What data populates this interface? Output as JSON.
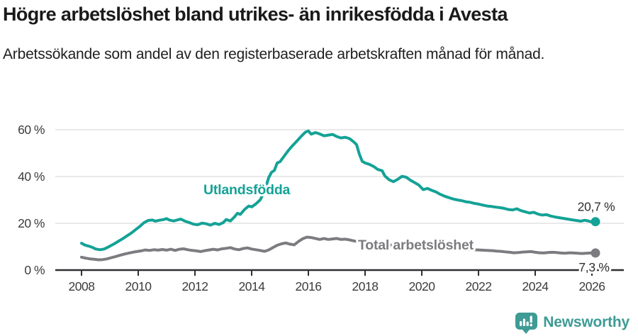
{
  "header": {
    "title": "Högre arbetslöshet bland utrikes- än inrikesfödda i Avesta",
    "subtitle": "Arbetssökande som andel av den registerbaserade arbetskraften månad för månad."
  },
  "footer": {
    "brand": "Newsworthy"
  },
  "chart_data": {
    "type": "line",
    "title": "Högre arbetslöshet bland utrikes- än inrikesfödda i Avesta",
    "subtitle": "Arbetssökande som andel av den registerbaserade arbetskraften månad för månad.",
    "xlabel": "",
    "ylabel": "",
    "xlim": [
      2007.08,
      2027.13
    ],
    "ylim": [
      0,
      70
    ],
    "grid": "horizontal",
    "legend": "direct-labels",
    "colors": {
      "teal": "#14A296",
      "gray": "#7C7C80",
      "grid": "#E2E2E2",
      "axis": "#2F2F33"
    },
    "x_ticks": [
      {
        "value": 2008,
        "label": "2008"
      },
      {
        "value": 2010,
        "label": "2010"
      },
      {
        "value": 2012,
        "label": "2012"
      },
      {
        "value": 2014,
        "label": "2014"
      },
      {
        "value": 2016,
        "label": "2016"
      },
      {
        "value": 2018,
        "label": "2018"
      },
      {
        "value": 2020,
        "label": "2020"
      },
      {
        "value": 2022,
        "label": "2022"
      },
      {
        "value": 2024,
        "label": "2024"
      },
      {
        "value": 2026,
        "label": "2026"
      }
    ],
    "y_ticks": [
      {
        "value": 0,
        "label": "0 %"
      },
      {
        "value": 20,
        "label": "20 %"
      },
      {
        "value": 40,
        "label": "40 %"
      },
      {
        "value": 60,
        "label": "60 %"
      }
    ],
    "series": [
      {
        "id": "utlandsfodda",
        "name": "Utlandsfödda",
        "color": "#14A296",
        "label": {
          "x": 2012.3,
          "y": 32.4
        },
        "end_label": {
          "text": "20,7 %",
          "dx": 1,
          "dy": -15
        },
        "end_value": 20.7,
        "points": [
          [
            2008.0,
            11.5
          ],
          [
            2008.1,
            10.8
          ],
          [
            2008.2,
            10.4
          ],
          [
            2008.3,
            10.1
          ],
          [
            2008.4,
            9.6
          ],
          [
            2008.5,
            9.0
          ],
          [
            2008.65,
            8.7
          ],
          [
            2008.8,
            9.0
          ],
          [
            2008.9,
            9.6
          ],
          [
            2009.0,
            10.2
          ],
          [
            2009.15,
            11.2
          ],
          [
            2009.3,
            12.3
          ],
          [
            2009.45,
            13.4
          ],
          [
            2009.6,
            14.6
          ],
          [
            2009.75,
            15.8
          ],
          [
            2009.9,
            17.2
          ],
          [
            2010.05,
            18.6
          ],
          [
            2010.2,
            20.2
          ],
          [
            2010.35,
            21.2
          ],
          [
            2010.5,
            21.4
          ],
          [
            2010.6,
            20.9
          ],
          [
            2010.75,
            21.3
          ],
          [
            2010.9,
            21.6
          ],
          [
            2011.0,
            22.0
          ],
          [
            2011.1,
            21.4
          ],
          [
            2011.25,
            21.0
          ],
          [
            2011.4,
            21.5
          ],
          [
            2011.5,
            21.8
          ],
          [
            2011.65,
            20.9
          ],
          [
            2011.8,
            20.3
          ],
          [
            2011.95,
            19.6
          ],
          [
            2012.1,
            19.4
          ],
          [
            2012.25,
            20.1
          ],
          [
            2012.4,
            19.8
          ],
          [
            2012.55,
            19.2
          ],
          [
            2012.7,
            20.0
          ],
          [
            2012.85,
            19.5
          ],
          [
            2013.0,
            20.3
          ],
          [
            2013.1,
            21.6
          ],
          [
            2013.25,
            21.0
          ],
          [
            2013.4,
            22.8
          ],
          [
            2013.5,
            24.3
          ],
          [
            2013.6,
            23.8
          ],
          [
            2013.75,
            25.9
          ],
          [
            2013.9,
            27.4
          ],
          [
            2014.0,
            27.0
          ],
          [
            2014.15,
            28.3
          ],
          [
            2014.3,
            30.0
          ],
          [
            2014.45,
            33.5
          ],
          [
            2014.6,
            39.5
          ],
          [
            2014.7,
            41.8
          ],
          [
            2014.8,
            42.6
          ],
          [
            2014.9,
            45.8
          ],
          [
            2015.0,
            46.3
          ],
          [
            2015.15,
            48.8
          ],
          [
            2015.3,
            51.2
          ],
          [
            2015.45,
            53.3
          ],
          [
            2015.6,
            55.2
          ],
          [
            2015.75,
            57.2
          ],
          [
            2015.9,
            59.0
          ],
          [
            2016.0,
            59.5
          ],
          [
            2016.1,
            58.1
          ],
          [
            2016.25,
            58.8
          ],
          [
            2016.4,
            58.2
          ],
          [
            2016.55,
            57.4
          ],
          [
            2016.7,
            57.7
          ],
          [
            2016.85,
            58.0
          ],
          [
            2017.0,
            57.1
          ],
          [
            2017.15,
            56.5
          ],
          [
            2017.3,
            56.8
          ],
          [
            2017.45,
            56.2
          ],
          [
            2017.6,
            54.8
          ],
          [
            2017.7,
            53.6
          ],
          [
            2017.8,
            49.5
          ],
          [
            2017.9,
            46.5
          ],
          [
            2018.0,
            45.8
          ],
          [
            2018.15,
            45.2
          ],
          [
            2018.3,
            44.3
          ],
          [
            2018.45,
            43.0
          ],
          [
            2018.6,
            42.5
          ],
          [
            2018.7,
            40.2
          ],
          [
            2018.85,
            38.6
          ],
          [
            2019.0,
            37.8
          ],
          [
            2019.15,
            38.8
          ],
          [
            2019.3,
            40.1
          ],
          [
            2019.45,
            39.7
          ],
          [
            2019.6,
            38.4
          ],
          [
            2019.75,
            37.4
          ],
          [
            2019.9,
            36.3
          ],
          [
            2020.05,
            34.4
          ],
          [
            2020.2,
            34.9
          ],
          [
            2020.35,
            34.1
          ],
          [
            2020.5,
            33.4
          ],
          [
            2020.65,
            32.4
          ],
          [
            2020.8,
            31.6
          ],
          [
            2020.95,
            31.0
          ],
          [
            2021.1,
            30.4
          ],
          [
            2021.25,
            30.0
          ],
          [
            2021.4,
            29.7
          ],
          [
            2021.55,
            29.2
          ],
          [
            2021.7,
            29.0
          ],
          [
            2021.85,
            28.5
          ],
          [
            2022.0,
            28.2
          ],
          [
            2022.15,
            27.8
          ],
          [
            2022.3,
            27.4
          ],
          [
            2022.45,
            27.2
          ],
          [
            2022.6,
            26.9
          ],
          [
            2022.75,
            26.7
          ],
          [
            2022.9,
            26.4
          ],
          [
            2023.05,
            25.9
          ],
          [
            2023.2,
            25.7
          ],
          [
            2023.35,
            26.2
          ],
          [
            2023.5,
            25.4
          ],
          [
            2023.65,
            24.9
          ],
          [
            2023.8,
            24.4
          ],
          [
            2023.95,
            24.7
          ],
          [
            2024.1,
            23.9
          ],
          [
            2024.25,
            23.5
          ],
          [
            2024.4,
            23.7
          ],
          [
            2024.55,
            23.1
          ],
          [
            2024.7,
            22.7
          ],
          [
            2024.85,
            22.4
          ],
          [
            2025.0,
            22.1
          ],
          [
            2025.15,
            21.8
          ],
          [
            2025.3,
            21.5
          ],
          [
            2025.45,
            21.2
          ],
          [
            2025.6,
            20.9
          ],
          [
            2025.75,
            21.3
          ],
          [
            2025.9,
            20.9
          ],
          [
            2026.0,
            20.5
          ],
          [
            2026.125,
            20.7
          ]
        ]
      },
      {
        "id": "total",
        "name": "Total arbetslöshet",
        "color": "#7C7C80",
        "label": {
          "x": 2017.75,
          "y": 8.8
        },
        "end_label": {
          "text": "7,3 %",
          "dx": -2,
          "dy": 26
        },
        "end_value": 7.3,
        "points": [
          [
            2008.0,
            5.5
          ],
          [
            2008.15,
            5.1
          ],
          [
            2008.3,
            4.8
          ],
          [
            2008.45,
            4.6
          ],
          [
            2008.6,
            4.4
          ],
          [
            2008.75,
            4.5
          ],
          [
            2008.9,
            4.8
          ],
          [
            2009.05,
            5.3
          ],
          [
            2009.2,
            5.8
          ],
          [
            2009.35,
            6.3
          ],
          [
            2009.5,
            6.8
          ],
          [
            2009.65,
            7.2
          ],
          [
            2009.8,
            7.6
          ],
          [
            2009.95,
            7.9
          ],
          [
            2010.1,
            8.2
          ],
          [
            2010.25,
            8.6
          ],
          [
            2010.4,
            8.4
          ],
          [
            2010.55,
            8.7
          ],
          [
            2010.7,
            8.5
          ],
          [
            2010.85,
            8.8
          ],
          [
            2011.0,
            8.5
          ],
          [
            2011.15,
            8.9
          ],
          [
            2011.3,
            8.4
          ],
          [
            2011.45,
            8.9
          ],
          [
            2011.6,
            9.1
          ],
          [
            2011.75,
            8.7
          ],
          [
            2011.9,
            8.4
          ],
          [
            2012.05,
            8.2
          ],
          [
            2012.2,
            7.9
          ],
          [
            2012.35,
            8.3
          ],
          [
            2012.5,
            8.6
          ],
          [
            2012.65,
            8.9
          ],
          [
            2012.8,
            8.6
          ],
          [
            2012.95,
            9.1
          ],
          [
            2013.1,
            9.3
          ],
          [
            2013.25,
            9.6
          ],
          [
            2013.4,
            9.0
          ],
          [
            2013.55,
            8.7
          ],
          [
            2013.7,
            9.2
          ],
          [
            2013.85,
            9.5
          ],
          [
            2014.0,
            9.0
          ],
          [
            2014.15,
            8.7
          ],
          [
            2014.3,
            8.4
          ],
          [
            2014.45,
            8.0
          ],
          [
            2014.6,
            8.6
          ],
          [
            2014.75,
            9.6
          ],
          [
            2014.9,
            10.6
          ],
          [
            2015.05,
            11.2
          ],
          [
            2015.2,
            11.6
          ],
          [
            2015.35,
            11.1
          ],
          [
            2015.5,
            10.8
          ],
          [
            2015.65,
            12.2
          ],
          [
            2015.8,
            13.4
          ],
          [
            2015.95,
            14.1
          ],
          [
            2016.1,
            13.9
          ],
          [
            2016.25,
            13.5
          ],
          [
            2016.4,
            13.1
          ],
          [
            2016.55,
            13.5
          ],
          [
            2016.7,
            13.1
          ],
          [
            2016.85,
            13.3
          ],
          [
            2017.0,
            13.5
          ],
          [
            2017.15,
            13.1
          ],
          [
            2017.3,
            13.2
          ],
          [
            2017.45,
            12.9
          ],
          [
            2017.6,
            12.5
          ],
          [
            2017.75,
            12.2
          ],
          [
            2018.0,
            11.8
          ],
          [
            2018.5,
            11.2
          ],
          [
            2019.0,
            10.6
          ],
          [
            2019.5,
            10.1
          ],
          [
            2020.0,
            9.8
          ],
          [
            2020.5,
            9.5
          ],
          [
            2021.0,
            9.2
          ],
          [
            2021.5,
            8.9
          ],
          [
            2022.0,
            8.6
          ],
          [
            2022.3,
            8.4
          ],
          [
            2022.5,
            8.3
          ],
          [
            2022.65,
            8.1
          ],
          [
            2022.8,
            8.0
          ],
          [
            2022.95,
            7.8
          ],
          [
            2023.1,
            7.6
          ],
          [
            2023.25,
            7.4
          ],
          [
            2023.4,
            7.5
          ],
          [
            2023.55,
            7.7
          ],
          [
            2023.7,
            7.8
          ],
          [
            2023.85,
            7.9
          ],
          [
            2024.0,
            7.6
          ],
          [
            2024.15,
            7.4
          ],
          [
            2024.3,
            7.3
          ],
          [
            2024.45,
            7.5
          ],
          [
            2024.6,
            7.6
          ],
          [
            2024.75,
            7.5
          ],
          [
            2024.9,
            7.3
          ],
          [
            2025.05,
            7.2
          ],
          [
            2025.2,
            7.4
          ],
          [
            2025.35,
            7.3
          ],
          [
            2025.5,
            7.2
          ],
          [
            2025.65,
            7.1
          ],
          [
            2025.8,
            7.2
          ],
          [
            2025.95,
            7.3
          ],
          [
            2026.125,
            7.3
          ]
        ]
      }
    ]
  }
}
